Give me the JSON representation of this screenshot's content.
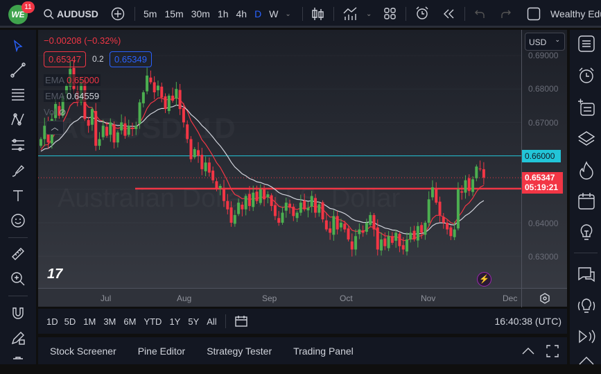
{
  "header": {
    "notifications": "11",
    "logo_text": "WE",
    "symbol": "AUDUSD",
    "timeframes": [
      "5m",
      "15m",
      "30m",
      "1h",
      "4h",
      "D",
      "W"
    ],
    "active_timeframe": "D",
    "layout_name": "Wealthy Edu"
  },
  "legend": {
    "change": "−0.00208 (−0.32%)",
    "bid": "0.65347",
    "spread": "0.2",
    "ask": "0.65349",
    "ema1_label": "EMA",
    "ema1_value": "0.65000",
    "ema2_label": "EMA",
    "ema2_value": "0.64559",
    "vol_label": "Vol"
  },
  "watermark": {
    "title": "AUDUSD, 1D",
    "subtitle": "Australian Dollar / U.S. Dollar"
  },
  "price_axis": {
    "currency": "USD",
    "ticks": [
      "0.69000",
      "0.68000",
      "0.67000",
      "0.66000",
      "0.65000",
      "0.64000",
      "0.63000"
    ],
    "level_label": "0.66000",
    "last_price": "0.65347",
    "countdown": "05:19:21"
  },
  "time_axis": {
    "labels": [
      "Jul",
      "Aug",
      "Sep",
      "Oct",
      "Nov",
      "Dec"
    ]
  },
  "range_bar": {
    "ranges": [
      "1D",
      "5D",
      "1M",
      "3M",
      "6M",
      "YTD",
      "1Y",
      "5Y",
      "All"
    ],
    "clock": "16:40:38 (UTC)"
  },
  "bottom_tabs": [
    "Stock Screener",
    "Pine Editor",
    "Strategy Tester",
    "Trading Panel"
  ],
  "colors": {
    "up": "#4caf50",
    "down": "#f23645",
    "ema_fast": "#f23645",
    "ema_slow": "#d1d4dc",
    "level": "#22c5d8",
    "resistance": "#f23645"
  },
  "chart_data": {
    "type": "candlestick",
    "symbol": "AUDUSD",
    "interval": "1D",
    "ylim": [
      0.625,
      0.692
    ],
    "horizontal_lines": [
      {
        "price": 0.66,
        "color": "cyan"
      },
      {
        "price": 0.6502,
        "color": "red"
      }
    ],
    "last_price": 0.65347,
    "closes": [
      0.665,
      0.669,
      0.664,
      0.671,
      0.6755,
      0.672,
      0.678,
      0.681,
      0.686,
      0.68,
      0.676,
      0.682,
      0.671,
      0.669,
      0.674,
      0.663,
      0.665,
      0.669,
      0.666,
      0.67,
      0.664,
      0.667,
      0.67,
      0.666,
      0.669,
      0.668,
      0.669,
      0.676,
      0.679,
      0.684,
      0.682,
      0.679,
      0.681,
      0.6775,
      0.674,
      0.678,
      0.6765,
      0.68,
      0.674,
      0.67,
      0.665,
      0.659,
      0.662,
      0.66,
      0.656,
      0.658,
      0.655,
      0.6527,
      0.65,
      0.651,
      0.6465,
      0.644,
      0.64,
      0.6423,
      0.646,
      0.644,
      0.648,
      0.645,
      0.649,
      0.6465,
      0.65,
      0.647,
      0.6485,
      0.645,
      0.642,
      0.64,
      0.643,
      0.646,
      0.6445,
      0.642,
      0.643,
      0.646,
      0.644,
      0.6445,
      0.648,
      0.643,
      0.6455,
      0.641,
      0.638,
      0.637,
      0.642,
      0.638,
      0.64,
      0.638,
      0.635,
      0.632,
      0.636,
      0.638,
      0.637,
      0.64,
      0.6423,
      0.638,
      0.632,
      0.635,
      0.633,
      0.636,
      0.634,
      0.637,
      0.633,
      0.632,
      0.635,
      0.637,
      0.635,
      0.639,
      0.637,
      0.64,
      0.647,
      0.6506,
      0.646,
      0.6423,
      0.64,
      0.638,
      0.636,
      0.638,
      0.65,
      0.649,
      0.6527,
      0.6495,
      0.653,
      0.6568,
      0.656,
      0.6535
    ]
  }
}
